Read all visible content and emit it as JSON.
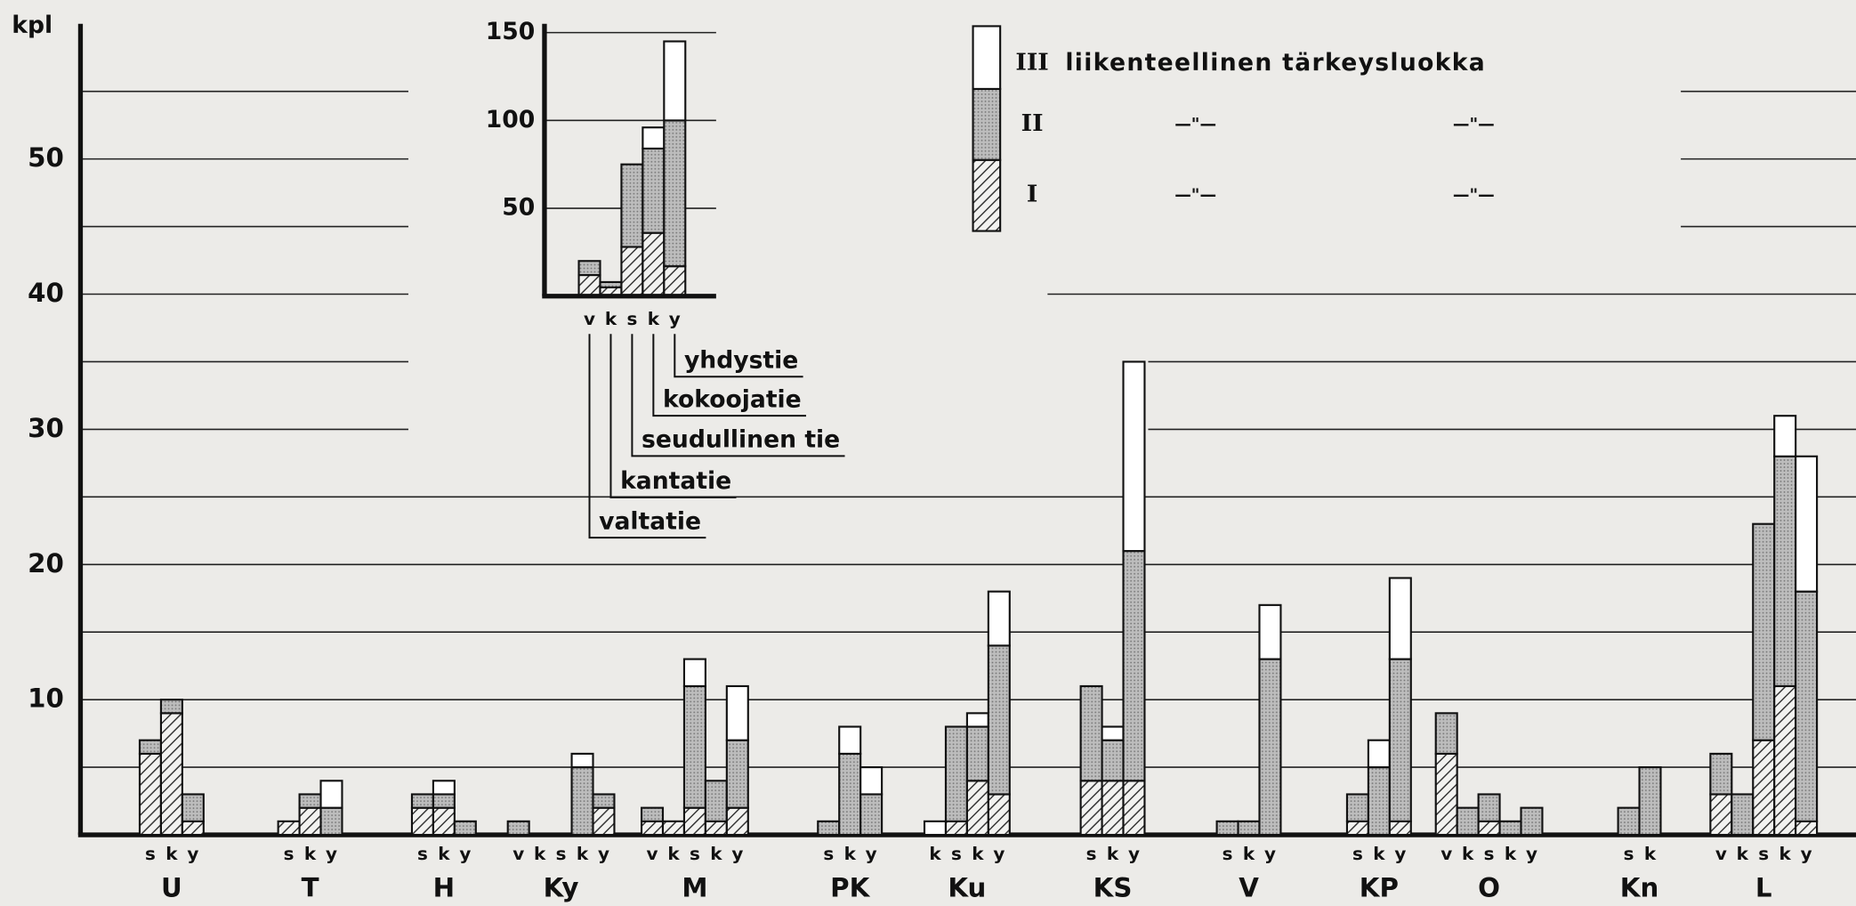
{
  "chart_data": {
    "type": "bar",
    "stacked": true,
    "ylabel": "kpl",
    "ylim": [
      0,
      60
    ],
    "yticks": [
      10,
      20,
      30,
      40,
      50
    ],
    "minor_yticks": [
      5,
      15,
      25,
      35,
      45,
      55
    ],
    "series": [
      {
        "name": "I",
        "color": "#444444",
        "pattern": "hatch"
      },
      {
        "name": "II",
        "color": "#b3b3b3",
        "pattern": "dots"
      },
      {
        "name": "III",
        "color": "#ffffff"
      }
    ],
    "legend_label": "liikenteellinen tärkeysluokka",
    "ditto": "—\"—",
    "groups": [
      {
        "name": "U",
        "bars": [
          {
            "type": "s",
            "values": [
              6,
              1,
              0
            ]
          },
          {
            "type": "k",
            "values": [
              9,
              1,
              0
            ]
          },
          {
            "type": "y",
            "values": [
              1,
              2,
              0
            ]
          }
        ]
      },
      {
        "name": "T",
        "bars": [
          {
            "type": "s",
            "values": [
              1,
              0,
              0
            ]
          },
          {
            "type": "k",
            "values": [
              2,
              1,
              0
            ]
          },
          {
            "type": "y",
            "values": [
              0,
              2,
              2
            ]
          }
        ]
      },
      {
        "name": "H",
        "bars": [
          {
            "type": "s",
            "values": [
              2,
              1,
              0
            ]
          },
          {
            "type": "k",
            "values": [
              2,
              1,
              1
            ]
          },
          {
            "type": "y",
            "values": [
              0,
              1,
              0
            ]
          }
        ]
      },
      {
        "name": "Ky",
        "bars": [
          {
            "type": "v",
            "values": [
              0,
              1,
              0
            ]
          },
          {
            "type": "k",
            "values": [
              0,
              0,
              0
            ]
          },
          {
            "type": "s",
            "values": [
              0,
              0,
              0
            ]
          },
          {
            "type": "k",
            "values": [
              0,
              5,
              1
            ]
          },
          {
            "type": "y",
            "values": [
              2,
              1,
              0
            ]
          }
        ]
      },
      {
        "name": "M",
        "bars": [
          {
            "type": "v",
            "values": [
              1,
              1,
              0
            ]
          },
          {
            "type": "k",
            "values": [
              1,
              0,
              0
            ]
          },
          {
            "type": "s",
            "values": [
              2,
              9,
              2
            ]
          },
          {
            "type": "k",
            "values": [
              1,
              3,
              0
            ]
          },
          {
            "type": "y",
            "values": [
              2,
              5,
              4
            ]
          }
        ]
      },
      {
        "name": "PK",
        "bars": [
          {
            "type": "s",
            "values": [
              0,
              1,
              0
            ]
          },
          {
            "type": "k",
            "values": [
              0,
              6,
              2
            ]
          },
          {
            "type": "y",
            "values": [
              0,
              3,
              2
            ]
          }
        ]
      },
      {
        "name": "Ku",
        "bars": [
          {
            "type": "k",
            "values": [
              0,
              0,
              1
            ]
          },
          {
            "type": "s",
            "values": [
              1,
              7,
              0
            ]
          },
          {
            "type": "k",
            "values": [
              4,
              4,
              1
            ]
          },
          {
            "type": "y",
            "values": [
              3,
              11,
              4
            ]
          }
        ]
      },
      {
        "name": "KS",
        "bars": [
          {
            "type": "s",
            "values": [
              4,
              7,
              0
            ]
          },
          {
            "type": "k",
            "values": [
              4,
              3,
              1
            ]
          },
          {
            "type": "y",
            "values": [
              4,
              17,
              14
            ]
          }
        ]
      },
      {
        "name": "V",
        "bars": [
          {
            "type": "s",
            "values": [
              0,
              1,
              0
            ]
          },
          {
            "type": "k",
            "values": [
              0,
              1,
              0
            ]
          },
          {
            "type": "y",
            "values": [
              0,
              13,
              4
            ]
          }
        ]
      },
      {
        "name": "KP",
        "bars": [
          {
            "type": "s",
            "values": [
              1,
              2,
              0
            ]
          },
          {
            "type": "k",
            "values": [
              0,
              5,
              2
            ]
          },
          {
            "type": "y",
            "values": [
              1,
              12,
              6
            ]
          }
        ]
      },
      {
        "name": "O",
        "bars": [
          {
            "type": "v",
            "values": [
              6,
              3,
              0
            ]
          },
          {
            "type": "k",
            "values": [
              0,
              2,
              0
            ]
          },
          {
            "type": "s",
            "values": [
              1,
              2,
              0
            ]
          },
          {
            "type": "k",
            "values": [
              0,
              1,
              0
            ]
          },
          {
            "type": "y",
            "values": [
              0,
              2,
              0
            ]
          }
        ]
      },
      {
        "name": "Kn",
        "bars": [
          {
            "type": "s",
            "values": [
              0,
              2,
              0
            ]
          },
          {
            "type": "k",
            "values": [
              0,
              5,
              0
            ]
          }
        ]
      },
      {
        "name": "L",
        "bars": [
          {
            "type": "v",
            "values": [
              3,
              3,
              0
            ]
          },
          {
            "type": "k",
            "values": [
              0,
              3,
              0
            ]
          },
          {
            "type": "s",
            "values": [
              7,
              16,
              0
            ]
          },
          {
            "type": "k",
            "values": [
              11,
              17,
              3
            ]
          },
          {
            "type": "y",
            "values": [
              1,
              17,
              10
            ]
          }
        ]
      }
    ],
    "inset": {
      "ylim": [
        0,
        155
      ],
      "yticks": [
        50,
        100,
        150
      ],
      "bars": [
        {
          "type": "v",
          "values": [
            12,
            8,
            0
          ]
        },
        {
          "type": "k",
          "values": [
            5,
            3,
            0
          ]
        },
        {
          "type": "s",
          "values": [
            28,
            47,
            0
          ]
        },
        {
          "type": "k",
          "values": [
            36,
            48,
            12
          ]
        },
        {
          "type": "y",
          "values": [
            17,
            83,
            45
          ]
        }
      ],
      "road_types": [
        "valtatie",
        "kantatie",
        "seudullinen tie",
        "kokoojatie",
        "yhdystie"
      ]
    }
  }
}
